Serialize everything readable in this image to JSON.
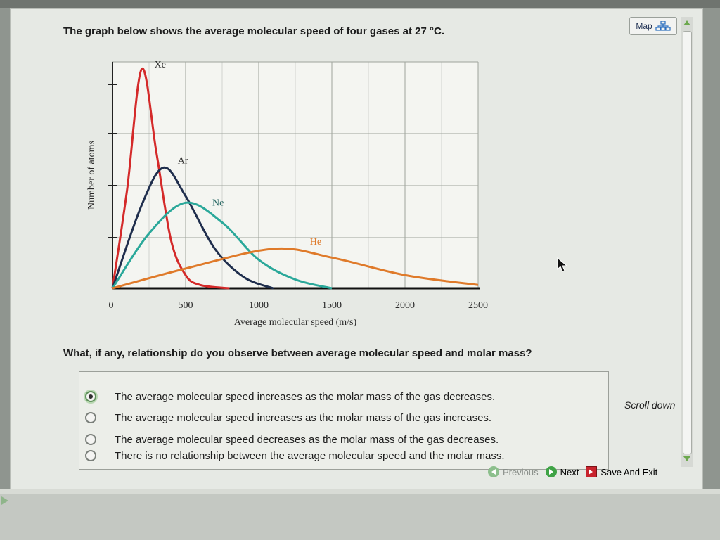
{
  "question": {
    "title": "The graph below shows the average molecular speed of four gases at 27 °C.",
    "prompt": "What, if any, relationship do you observe between average molecular speed and molar mass?"
  },
  "map_button": {
    "label": "Map",
    "icon": "map-hierarchy-icon"
  },
  "chart_data": {
    "type": "line",
    "xlabel": "Average molecular speed (m/s)",
    "ylabel": "Number of atoms",
    "xlim": [
      0,
      2500
    ],
    "x_ticks": [
      "0",
      "500",
      "1000",
      "1500",
      "2000",
      "2500"
    ],
    "grid": true,
    "series": [
      {
        "name": "Xe",
        "color": "#d42a2a",
        "peak_x": 200,
        "peak_y": 1.0,
        "x": [
          0,
          100,
          200,
          300,
          400,
          500,
          600,
          800
        ],
        "y": [
          0,
          0.45,
          1.0,
          0.62,
          0.22,
          0.06,
          0.015,
          0
        ]
      },
      {
        "name": "Ar",
        "color": "#1f2e4d",
        "peak_x": 350,
        "peak_y": 0.55,
        "x": [
          0,
          200,
          350,
          500,
          700,
          900,
          1100
        ],
        "y": [
          0,
          0.38,
          0.55,
          0.42,
          0.18,
          0.05,
          0
        ]
      },
      {
        "name": "Ne",
        "color": "#2aa89a",
        "peak_x": 500,
        "peak_y": 0.39,
        "x": [
          0,
          250,
          500,
          750,
          1000,
          1250,
          1500
        ],
        "y": [
          0,
          0.25,
          0.39,
          0.3,
          0.13,
          0.04,
          0
        ]
      },
      {
        "name": "He",
        "color": "#df7a2a",
        "peak_x": 1100,
        "peak_y": 0.18,
        "x": [
          0,
          500,
          1100,
          1500,
          2000,
          2500
        ],
        "y": [
          0,
          0.09,
          0.18,
          0.14,
          0.06,
          0.015
        ]
      }
    ]
  },
  "options": [
    {
      "text": "The average molecular speed increases as the molar mass of the gas decreases.",
      "selected": true
    },
    {
      "text": "The average molecular speed increases as the molar mass of the gas increases.",
      "selected": false
    },
    {
      "text": "The average molecular speed decreases as the molar mass of the gas decreases.",
      "selected": false
    },
    {
      "text": "There is no relationship between the average molecular speed and the molar mass.",
      "selected": false
    }
  ],
  "scroll_hint": "Scroll down",
  "nav": {
    "previous_label": "Previous",
    "next_label": "Next",
    "save_exit_label": "Save And Exit"
  }
}
